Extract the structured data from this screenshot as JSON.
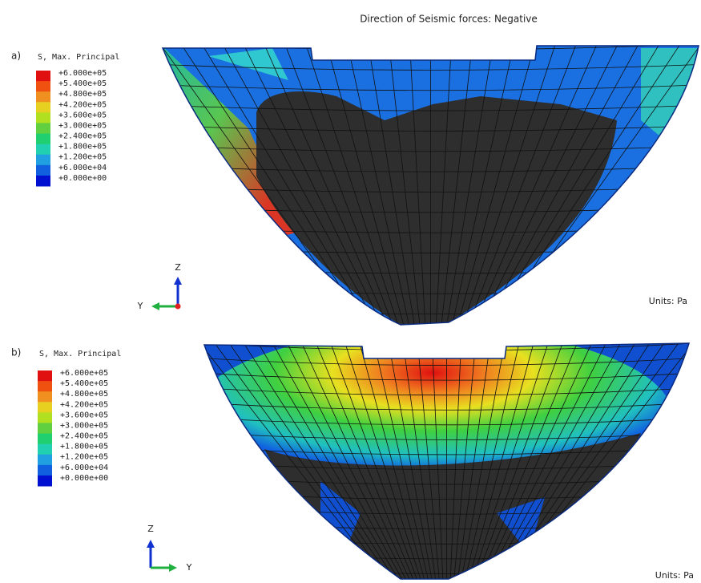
{
  "title": "Direction of Seismic forces: Negative",
  "panels": [
    {
      "label": "a)",
      "legend_title": "S, Max. Principal",
      "legend_labels": [
        "+6.000e+05",
        "+5.400e+05",
        "+4.800e+05",
        "+4.200e+05",
        "+3.600e+05",
        "+3.000e+05",
        "+2.400e+05",
        "+1.800e+05",
        "+1.200e+05",
        "+6.000e+04",
        "+0.000e+00"
      ],
      "axis_vertical": "Z",
      "axis_horizontal": "Y",
      "units": "Units: Pa"
    },
    {
      "label": "b)",
      "legend_title": "S, Max. Principal",
      "legend_labels": [
        "+6.000e+05",
        "+5.400e+05",
        "+4.800e+05",
        "+4.200e+05",
        "+3.600e+05",
        "+3.000e+05",
        "+2.400e+05",
        "+1.800e+05",
        "+1.200e+05",
        "+6.000e+04",
        "+0.000e+00"
      ],
      "axis_vertical": "Z",
      "axis_horizontal": "Y",
      "units": "Units: Pa"
    }
  ]
}
